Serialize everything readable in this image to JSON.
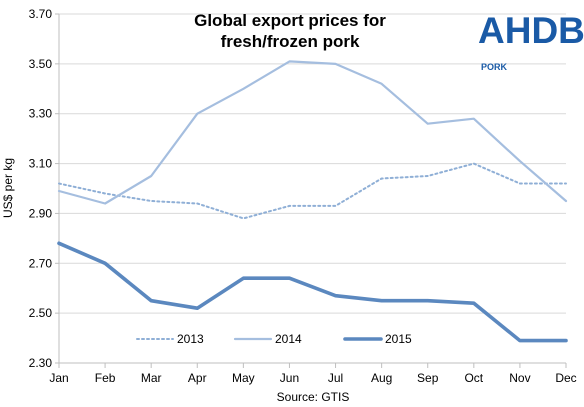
{
  "logo": {
    "name": "AHDB",
    "subtitle": "PORK",
    "color": "#1a5aa6"
  },
  "source": "Source: GTIS",
  "chart_data": {
    "type": "line",
    "title_lines": [
      "Global export prices for",
      "fresh/frozen pork"
    ],
    "xlabel": "",
    "ylabel": "US$ per kg",
    "categories": [
      "Jan",
      "Feb",
      "Mar",
      "Apr",
      "May",
      "Jun",
      "Jul",
      "Aug",
      "Sep",
      "Oct",
      "Nov",
      "Dec"
    ],
    "ylim": [
      2.3,
      3.7
    ],
    "yticks": [
      "3.70",
      "3.50",
      "3.30",
      "3.10",
      "2.90",
      "2.70",
      "2.50",
      "2.30"
    ],
    "grid": "horizontal",
    "legend_position": "bottom",
    "series": [
      {
        "name": "2013",
        "style": "dotted",
        "color": "#8fafd6",
        "values": [
          3.02,
          2.98,
          2.95,
          2.94,
          2.88,
          2.93,
          2.93,
          3.04,
          3.05,
          3.1,
          3.02,
          3.02
        ]
      },
      {
        "name": "2014",
        "style": "solid-thin",
        "color": "#a5bedf",
        "values": [
          2.99,
          2.94,
          3.05,
          3.3,
          3.4,
          3.51,
          3.5,
          3.42,
          3.26,
          3.28,
          3.11,
          2.95
        ]
      },
      {
        "name": "2015",
        "style": "solid-thick",
        "color": "#5b88bf",
        "values": [
          2.78,
          2.7,
          2.55,
          2.52,
          2.64,
          2.64,
          2.57,
          2.55,
          2.55,
          2.54,
          2.39,
          2.39
        ]
      }
    ]
  }
}
